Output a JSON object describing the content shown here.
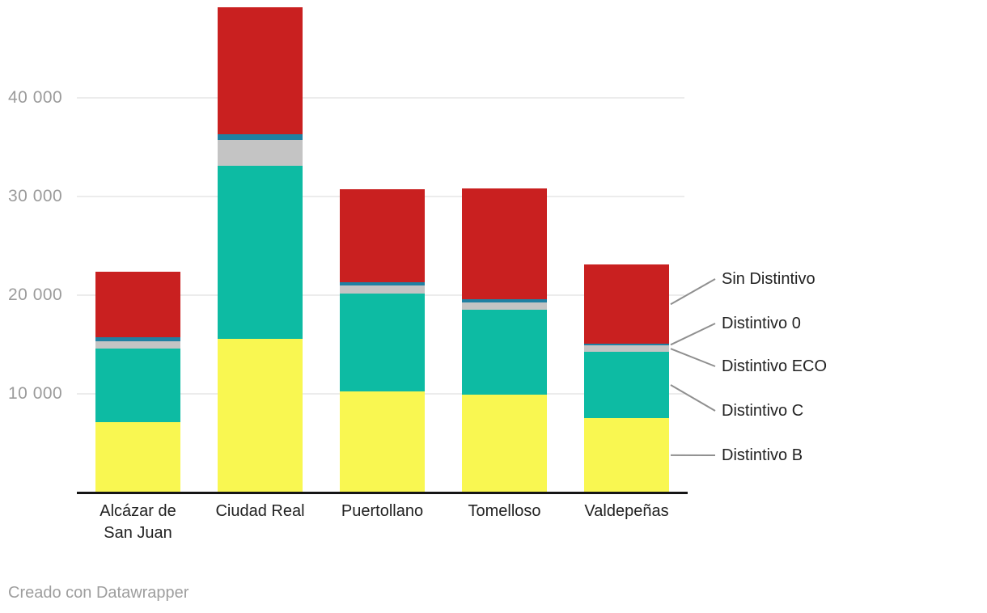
{
  "chart_data": {
    "type": "bar",
    "stacked": true,
    "title": "",
    "categories": [
      "Alcázar de San Juan",
      "Ciudad Real",
      "Puertollano",
      "Tomelloso",
      "Valdepeñas"
    ],
    "series": [
      {
        "name": "Distintivo B",
        "color": "#f9f751",
        "values": [
          7100,
          15600,
          10250,
          9900,
          7550
        ]
      },
      {
        "name": "Distintivo C",
        "color": "#0dbba3",
        "values": [
          7450,
          17500,
          9900,
          8600,
          6700
        ]
      },
      {
        "name": "Distintivo ECO",
        "color": "#c4c4c4",
        "values": [
          800,
          2600,
          800,
          750,
          650
        ]
      },
      {
        "name": "Distintivo 0",
        "color": "#2080a2",
        "values": [
          350,
          600,
          400,
          350,
          150
        ]
      },
      {
        "name": "Sin Distintivo",
        "color": "#c92020",
        "values": [
          6700,
          12900,
          9350,
          11250,
          8050
        ]
      }
    ],
    "y_ticks": [
      {
        "value": 10000,
        "label": "10 000"
      },
      {
        "value": 20000,
        "label": "20 000"
      },
      {
        "value": 30000,
        "label": "30 000"
      },
      {
        "value": 40000,
        "label": "40 000"
      }
    ],
    "ylim": [
      0,
      49900
    ],
    "grid": true,
    "legend_position": "right-annotations",
    "legend_order_top_to_bottom": [
      "Sin Distintivo",
      "Distintivo 0",
      "Distintivo ECO",
      "Distintivo C",
      "Distintivo B"
    ]
  },
  "footer": {
    "credit": "Creado con Datawrapper"
  },
  "colors": {
    "background": "#ffffff",
    "grid": "#ececec",
    "axis": "#151515",
    "tick_label": "#9b9b9b",
    "category_label": "#222222",
    "legend_label": "#222222",
    "leader_line": "#8f8f8f",
    "footer": "#9e9e9e"
  }
}
